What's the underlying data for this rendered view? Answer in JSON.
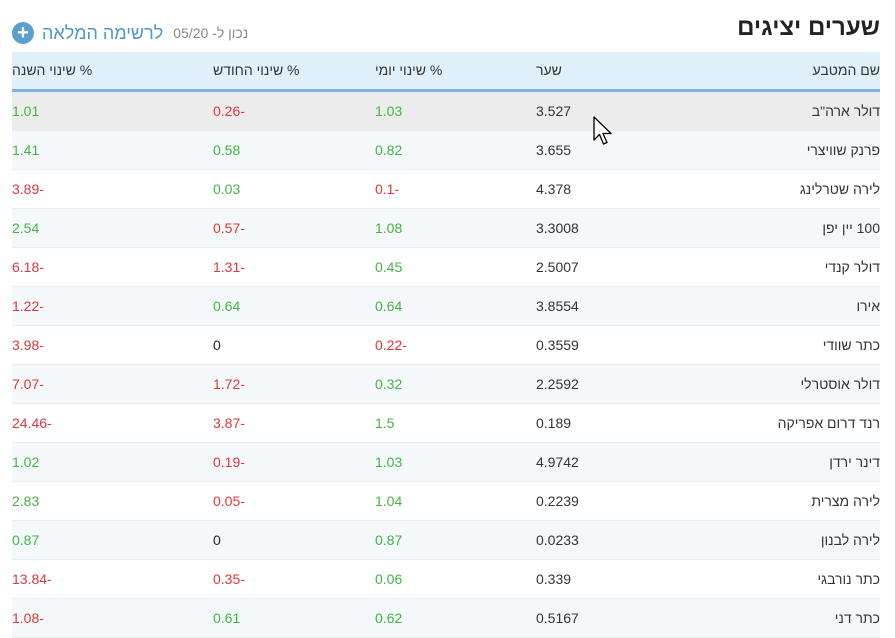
{
  "header": {
    "title": "שערים יציגים",
    "date_label": "נכון ל- 05/20",
    "full_list_label": "לרשימה המלאה",
    "plus_icon": "plus-circle-icon"
  },
  "table": {
    "columns": {
      "name": "שם המטבע",
      "rate": "שער",
      "day": "% שינוי יומי",
      "month": "% שינוי החודש",
      "year": "% שינוי השנה"
    },
    "rows": [
      {
        "name": "דולר ארה\"ב",
        "rate": "3.527",
        "day": "1.03",
        "month": "-0.26",
        "year": "1.01"
      },
      {
        "name": "פרנק שוויצרי",
        "rate": "3.655",
        "day": "0.82",
        "month": "0.58",
        "year": "1.41"
      },
      {
        "name": "לירה שטרלינג",
        "rate": "4.378",
        "day": "-0.1",
        "month": "0.03",
        "year": "-3.89"
      },
      {
        "name": "100 יין יפן",
        "rate": "3.3008",
        "day": "1.08",
        "month": "-0.57",
        "year": "2.54"
      },
      {
        "name": "דולר קנדי",
        "rate": "2.5007",
        "day": "0.45",
        "month": "-1.31",
        "year": "-6.18"
      },
      {
        "name": "אירו",
        "rate": "3.8554",
        "day": "0.64",
        "month": "0.64",
        "year": "-1.22"
      },
      {
        "name": "כתר שוודי",
        "rate": "0.3559",
        "day": "-0.22",
        "month": "0",
        "year": "-3.98"
      },
      {
        "name": "דולר אוסטרלי",
        "rate": "2.2592",
        "day": "0.32",
        "month": "-1.72",
        "year": "-7.07"
      },
      {
        "name": "רנד דרום אפריקה",
        "rate": "0.189",
        "day": "1.5",
        "month": "-3.87",
        "year": "-24.46"
      },
      {
        "name": "דינר ירדן",
        "rate": "4.9742",
        "day": "1.03",
        "month": "-0.19",
        "year": "1.02"
      },
      {
        "name": "לירה מצרית",
        "rate": "0.2239",
        "day": "1.04",
        "month": "-0.05",
        "year": "2.83"
      },
      {
        "name": "לירה לבנון",
        "rate": "0.0233",
        "day": "0.87",
        "month": "0",
        "year": "0.87"
      },
      {
        "name": "כתר נורבגי",
        "rate": "0.339",
        "day": "0.06",
        "month": "-0.35",
        "year": "-13.84"
      },
      {
        "name": "כתר דני",
        "rate": "0.5167",
        "day": "0.62",
        "month": "0.61",
        "year": "-1.08"
      }
    ]
  },
  "colors": {
    "positive": "#44b541",
    "negative": "#e0373b",
    "header_bg": "#dff0fa",
    "link": "#4f95c8"
  }
}
